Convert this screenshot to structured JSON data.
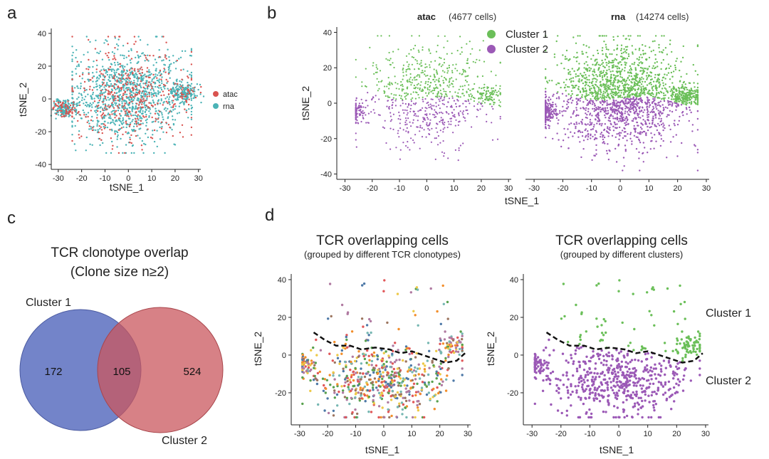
{
  "colors": {
    "atac": "#d9534f",
    "rna": "#4bb3b6",
    "cluster1": "#6bbf59",
    "cluster2": "#9b59b6",
    "venn_cluster1": "#5a6fbf",
    "venn_cluster2": "#c9575e",
    "clonotype_palette": [
      "#e15759",
      "#4e79a7",
      "#59a14f",
      "#f28e2b",
      "#76b7b2",
      "#b07aa1",
      "#edc948",
      "#9c755f"
    ]
  },
  "panels": {
    "a": {
      "letter": "a"
    },
    "b": {
      "letter": "b"
    },
    "c": {
      "letter": "c"
    },
    "d": {
      "letter": "d"
    }
  },
  "chart_data": [
    {
      "id": "a",
      "type": "scatter",
      "title": "",
      "xlabel": "tSNE_1",
      "ylabel": "tSNE_2",
      "xlim": [
        -33,
        31
      ],
      "ylim": [
        -43,
        43
      ],
      "xticks": [
        -30,
        -20,
        -10,
        0,
        10,
        20,
        30
      ],
      "yticks": [
        -40,
        -20,
        0,
        20,
        40
      ],
      "legend": {
        "placement": "right",
        "entries": [
          {
            "name": "atac",
            "color": "#d9534f"
          },
          {
            "name": "rna",
            "color": "#4bb3b6"
          }
        ]
      },
      "series": [
        {
          "name": "rna",
          "description": "overlaid cells spanning tSNE_1 -28..28, tSNE_2 -35..40"
        },
        {
          "name": "atac",
          "description": "subset of cells in clumps within same region"
        }
      ]
    },
    {
      "id": "b",
      "type": "scatter",
      "xlabel": "tSNE_1",
      "ylabel": "tSNE_2",
      "xlim": [
        -33,
        31
      ],
      "ylim": [
        -43,
        43
      ],
      "xticks": [
        -30,
        -20,
        -10,
        0,
        10,
        20,
        30
      ],
      "yticks": [
        -40,
        -20,
        0,
        20,
        40
      ],
      "facets": [
        {
          "name": "atac",
          "count_label": "(4677 cells)"
        },
        {
          "name": "rna",
          "count_label": "(14274 cells)"
        }
      ],
      "legend": {
        "placement": "top-center",
        "entries": [
          {
            "name": "Cluster 1",
            "color": "#6bbf59"
          },
          {
            "name": "Cluster 2",
            "color": "#9b59b6"
          }
        ]
      }
    },
    {
      "id": "c",
      "type": "venn",
      "title": "TCR clonotype overlap",
      "subtitle": "(Clone size n≥2)",
      "sets": [
        {
          "name": "Cluster 1",
          "only": 172
        },
        {
          "name": "Cluster 2",
          "only": 524
        }
      ],
      "intersection": 105
    },
    {
      "id": "d1",
      "type": "scatter",
      "title": "TCR overlapping cells",
      "subtitle": "(grouped by different TCR clonotypes)",
      "xlabel": "tSNE_1",
      "ylabel": "tSNE_2",
      "xlim": [
        -33,
        31
      ],
      "ylim": [
        -37,
        43
      ],
      "xticks": [
        -30,
        -20,
        -10,
        0,
        10,
        20,
        30
      ],
      "yticks": [
        -20,
        0,
        20,
        40
      ],
      "boundary": [
        [
          -25,
          12
        ],
        [
          -21,
          8
        ],
        [
          -17,
          5
        ],
        [
          -12,
          5
        ],
        [
          -8,
          3
        ],
        [
          -3,
          4
        ],
        [
          2,
          3
        ],
        [
          6,
          1
        ],
        [
          10,
          2
        ],
        [
          14,
          0
        ],
        [
          18,
          -2
        ],
        [
          22,
          -4
        ],
        [
          26,
          -3
        ],
        [
          29,
          1
        ]
      ]
    },
    {
      "id": "d2",
      "type": "scatter",
      "title": "TCR overlapping cells",
      "subtitle": "(grouped by different clusters)",
      "xlabel": "tSNE_1",
      "ylabel": "tSNE_2",
      "xlim": [
        -33,
        31
      ],
      "ylim": [
        -37,
        43
      ],
      "xticks": [
        -30,
        -20,
        -10,
        0,
        10,
        20,
        30
      ],
      "yticks": [
        -20,
        0,
        20,
        40
      ],
      "annotations": [
        "Cluster 1",
        "Cluster 2"
      ],
      "boundary": [
        [
          -25,
          12
        ],
        [
          -21,
          8
        ],
        [
          -17,
          5
        ],
        [
          -12,
          5
        ],
        [
          -8,
          3
        ],
        [
          -3,
          4
        ],
        [
          2,
          3
        ],
        [
          6,
          1
        ],
        [
          10,
          2
        ],
        [
          14,
          0
        ],
        [
          18,
          -2
        ],
        [
          22,
          -4
        ],
        [
          26,
          -3
        ],
        [
          29,
          1
        ]
      ]
    }
  ]
}
